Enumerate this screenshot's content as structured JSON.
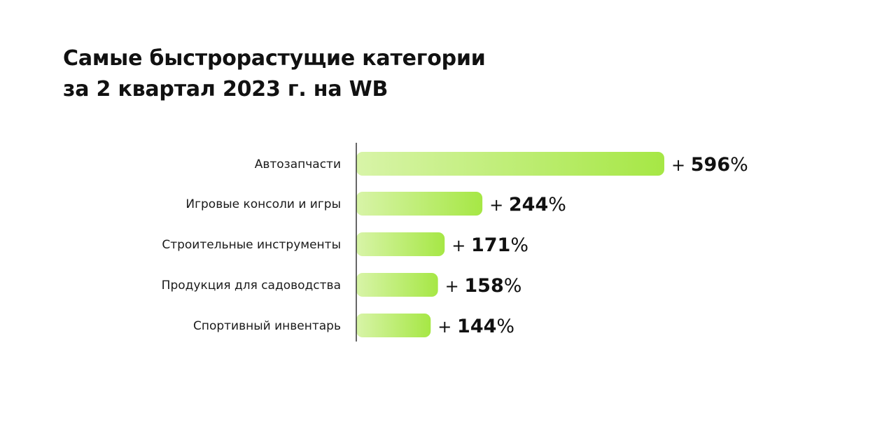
{
  "title": {
    "line1": "Самые быстрорастущие категории",
    "line2": "за 2 квартал 2023 г. на WB"
  },
  "colors": {
    "bar_start": "#d8f4a8",
    "bar_end": "#a6e745",
    "axis": "#333333",
    "text": "#111111"
  },
  "chart_data": {
    "type": "bar",
    "orientation": "horizontal",
    "title": "Самые быстрорастущие категории за 2 квартал 2023 г. на WB",
    "categories": [
      "Автозапчасти",
      "Игровые консоли и игры",
      "Строительные инструменты",
      "Продукция для садоводства",
      "Спортивный инвентарь"
    ],
    "values": [
      596,
      244,
      171,
      158,
      144
    ],
    "value_labels": [
      "+ 596%",
      "+ 244%",
      "+ 171%",
      "+ 158%",
      "+ 144%"
    ],
    "unit": "%",
    "xlabel": "",
    "ylabel": "",
    "grid": false,
    "legend": "none"
  }
}
